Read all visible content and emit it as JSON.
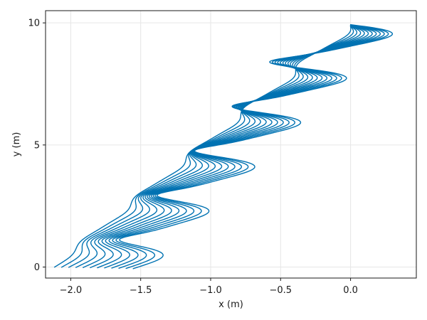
{
  "chart_data": {
    "type": "line",
    "title": "",
    "xlabel": "x (m)",
    "ylabel": "y (m)",
    "xlim": [
      -2.18,
      0.47
    ],
    "ylim": [
      -0.45,
      10.5
    ],
    "xticks": [
      -2.0,
      -1.5,
      -1.0,
      -0.5,
      0.0
    ],
    "xtick_labels": [
      "−2.0",
      "−1.5",
      "−1.0",
      "−0.5",
      "0.0"
    ],
    "yticks": [
      0,
      5,
      10
    ],
    "ytick_labels": [
      "0",
      "5",
      "10"
    ],
    "grid": true,
    "legend": "none",
    "series_color": "#0072b2",
    "family": {
      "description_free_params": true,
      "count": 12,
      "x_start": 0.0,
      "y_start": 9.85,
      "y_end": 0.0,
      "drift_per_unit_y": 0.212,
      "amplitude_min": 0.05,
      "amplitude_max": 0.34,
      "cycles_per_unit_y": 0.55,
      "skew": 0.55,
      "end_spread_x": [
        -2.05,
        -1.33
      ]
    }
  }
}
